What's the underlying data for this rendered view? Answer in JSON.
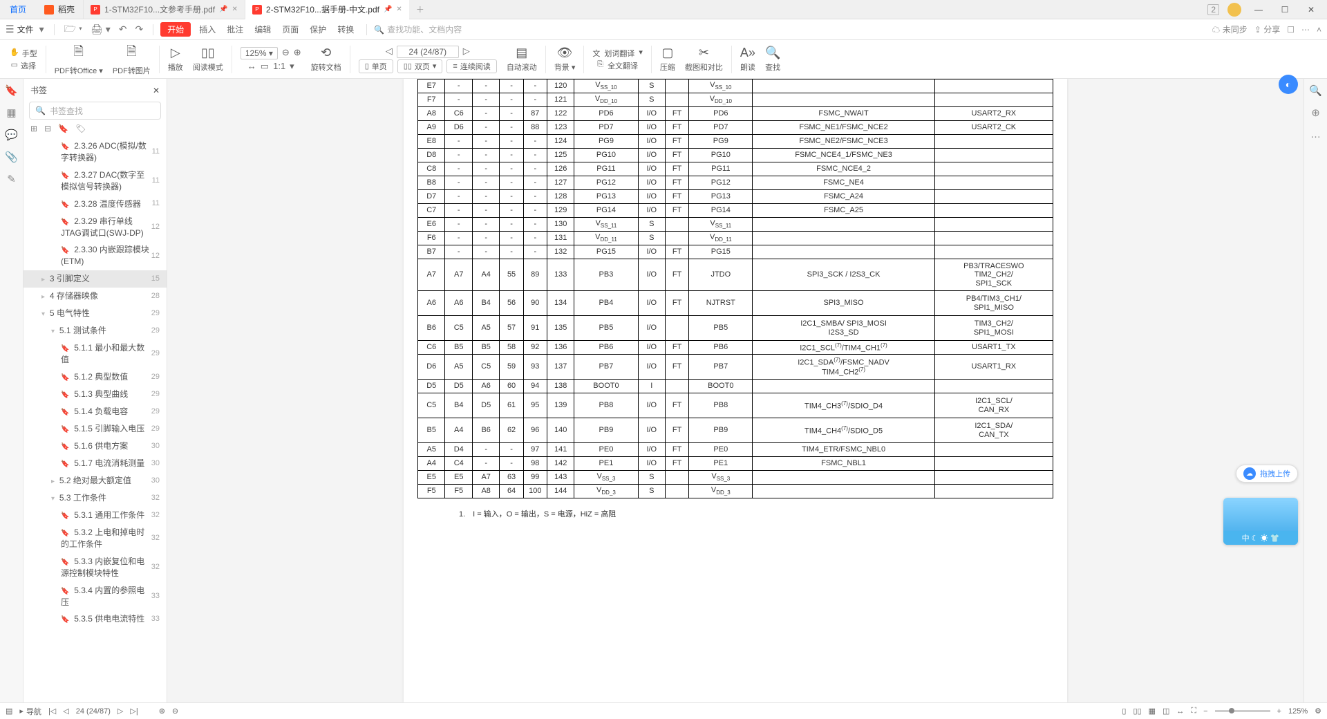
{
  "tabs": {
    "home": "首页",
    "shell": "稻壳",
    "doc1": "1-STM32F10...文参考手册.pdf",
    "doc2": "2-STM32F10...据手册-中文.pdf",
    "counter": "2"
  },
  "menu": {
    "file": "文件",
    "start": "开始",
    "items": [
      "插入",
      "批注",
      "编辑",
      "页面",
      "保护",
      "转换"
    ],
    "search_ph": "查找功能、文档内容",
    "sync": "未同步",
    "share": "分享"
  },
  "toolbar": {
    "hand": "手型",
    "select": "选择",
    "pdf_office": "PDF转Office",
    "pdf_img": "PDF转图片",
    "play": "播放",
    "read_mode": "阅读模式",
    "zoom": "125%",
    "rotate": "旋转文档",
    "page_nav": "24 (24/87)",
    "single": "单页",
    "double": "双页",
    "continuous": "连续阅读",
    "auto_scroll": "自动滚动",
    "bg": "背景",
    "wordtr": "划词翻译",
    "fulltr": "全文翻译",
    "compress": "压缩",
    "screenshot": "截图和对比",
    "readaloud": "朗读",
    "find": "查找"
  },
  "bm": {
    "title": "书签",
    "search_ph": "书签查找",
    "items": [
      {
        "d": 3,
        "lbl": "2.3.26 ADC(模拟/数字转换器)",
        "pg": "11"
      },
      {
        "d": 3,
        "lbl": "2.3.27 DAC(数字至模拟信号转换器)",
        "pg": "11"
      },
      {
        "d": 3,
        "lbl": "2.3.28 温度传感器",
        "pg": "11"
      },
      {
        "d": 3,
        "lbl": "2.3.29 串行单线JTAG调试口(SWJ-DP)",
        "pg": "12"
      },
      {
        "d": 3,
        "lbl": "2.3.30 内嵌跟踪模块(ETM)",
        "pg": "12"
      },
      {
        "d": 1,
        "lbl": "3 引脚定义",
        "pg": "15",
        "sel": true
      },
      {
        "d": 1,
        "lbl": "4 存储器映像",
        "pg": "28"
      },
      {
        "d": 1,
        "lbl": "5 电气特性",
        "pg": "29",
        "exp": true
      },
      {
        "d": 2,
        "lbl": "5.1 测试条件",
        "pg": "29",
        "exp": true
      },
      {
        "d": 3,
        "lbl": "5.1.1 最小和最大数值",
        "pg": "29"
      },
      {
        "d": 3,
        "lbl": "5.1.2 典型数值",
        "pg": "29"
      },
      {
        "d": 3,
        "lbl": "5.1.3 典型曲线",
        "pg": "29"
      },
      {
        "d": 3,
        "lbl": "5.1.4 负载电容",
        "pg": "29"
      },
      {
        "d": 3,
        "lbl": "5.1.5 引脚输入电压",
        "pg": "29"
      },
      {
        "d": 3,
        "lbl": "5.1.6 供电方案",
        "pg": "30"
      },
      {
        "d": 3,
        "lbl": "5.1.7 电流消耗测量",
        "pg": "30"
      },
      {
        "d": 2,
        "lbl": "5.2 绝对最大额定值",
        "pg": "30"
      },
      {
        "d": 2,
        "lbl": "5.3 工作条件",
        "pg": "32",
        "exp": true
      },
      {
        "d": 3,
        "lbl": "5.3.1 通用工作条件",
        "pg": "32"
      },
      {
        "d": 3,
        "lbl": "5.3.2 上电和掉电时的工作条件",
        "pg": "32"
      },
      {
        "d": 3,
        "lbl": "5.3.3 内嵌复位和电源控制模块特性",
        "pg": "32"
      },
      {
        "d": 3,
        "lbl": "5.3.4 内置的参照电压",
        "pg": "33"
      },
      {
        "d": 3,
        "lbl": "5.3.5 供电电流特性",
        "pg": "33"
      }
    ]
  },
  "tbl": {
    "rows": [
      {
        "c": [
          "E7",
          "-",
          "-",
          "-",
          "-",
          "120",
          "V<sub>SS_10</sub>",
          "S",
          "",
          "V<sub>SS_10</sub>",
          "",
          ""
        ]
      },
      {
        "c": [
          "F7",
          "-",
          "-",
          "-",
          "-",
          "121",
          "V<sub>DD_10</sub>",
          "S",
          "",
          "V<sub>DD_10</sub>",
          "",
          ""
        ]
      },
      {
        "c": [
          "A8",
          "C6",
          "-",
          "-",
          "87",
          "122",
          "PD6",
          "I/O",
          "FT",
          "PD6",
          "FSMC_NWAIT",
          "USART2_RX"
        ]
      },
      {
        "c": [
          "A9",
          "D6",
          "-",
          "-",
          "88",
          "123",
          "PD7",
          "I/O",
          "FT",
          "PD7",
          "FSMC_NE1/FSMC_NCE2",
          "USART2_CK"
        ]
      },
      {
        "c": [
          "E8",
          "-",
          "-",
          "-",
          "-",
          "124",
          "PG9",
          "I/O",
          "FT",
          "PG9",
          "FSMC_NE2/FSMC_NCE3",
          ""
        ]
      },
      {
        "c": [
          "D8",
          "-",
          "-",
          "-",
          "-",
          "125",
          "PG10",
          "I/O",
          "FT",
          "PG10",
          "FSMC_NCE4_1/FSMC_NE3",
          ""
        ]
      },
      {
        "c": [
          "C8",
          "-",
          "-",
          "-",
          "-",
          "126",
          "PG11",
          "I/O",
          "FT",
          "PG11",
          "FSMC_NCE4_2",
          ""
        ]
      },
      {
        "c": [
          "B8",
          "-",
          "-",
          "-",
          "-",
          "127",
          "PG12",
          "I/O",
          "FT",
          "PG12",
          "FSMC_NE4",
          ""
        ]
      },
      {
        "c": [
          "D7",
          "-",
          "-",
          "-",
          "-",
          "128",
          "PG13",
          "I/O",
          "FT",
          "PG13",
          "FSMC_A24",
          ""
        ]
      },
      {
        "c": [
          "C7",
          "-",
          "-",
          "-",
          "-",
          "129",
          "PG14",
          "I/O",
          "FT",
          "PG14",
          "FSMC_A25",
          ""
        ]
      },
      {
        "c": [
          "E6",
          "-",
          "-",
          "-",
          "-",
          "130",
          "V<sub>SS_11</sub>",
          "S",
          "",
          "V<sub>SS_11</sub>",
          "",
          ""
        ]
      },
      {
        "c": [
          "F6",
          "-",
          "-",
          "-",
          "-",
          "131",
          "V<sub>DD_11</sub>",
          "S",
          "",
          "V<sub>DD_11</sub>",
          "",
          ""
        ]
      },
      {
        "c": [
          "B7",
          "-",
          "-",
          "-",
          "-",
          "132",
          "PG15",
          "I/O",
          "FT",
          "PG15",
          "",
          ""
        ]
      },
      {
        "h": "tall",
        "c": [
          "A7",
          "A7",
          "A4",
          "55",
          "89",
          "133",
          "PB3",
          "I/O",
          "FT",
          "JTDO",
          "SPI3_SCK / I2S3_CK",
          "PB3/TRACESWO<br>TIM2_CH2/<br>SPI1_SCK"
        ]
      },
      {
        "h": "med",
        "c": [
          "A6",
          "A6",
          "B4",
          "56",
          "90",
          "134",
          "PB4",
          "I/O",
          "FT",
          "NJTRST",
          "SPI3_MISO",
          "PB4/TIM3_CH1/<br>SPI1_MISO"
        ]
      },
      {
        "h": "med",
        "c": [
          "B6",
          "C5",
          "A5",
          "57",
          "91",
          "135",
          "PB5",
          "I/O",
          "",
          "PB5",
          "I2C1_SMBA/ SPI3_MOSI<br>I2S3_SD",
          "TIM3_CH2/<br>SPI1_MOSI"
        ]
      },
      {
        "c": [
          "C6",
          "B5",
          "B5",
          "58",
          "92",
          "136",
          "PB6",
          "I/O",
          "FT",
          "PB6",
          "I2C1_SCL<sup>(7)</sup>/TIM4_CH1<sup>(7)</sup>",
          "USART1_TX"
        ]
      },
      {
        "h": "med",
        "c": [
          "D6",
          "A5",
          "C5",
          "59",
          "93",
          "137",
          "PB7",
          "I/O",
          "FT",
          "PB7",
          "I2C1_SDA<sup>(7)</sup>/FSMC_NADV<br>TIM4_CH2<sup>(7)</sup>",
          "USART1_RX"
        ]
      },
      {
        "c": [
          "D5",
          "D5",
          "A6",
          "60",
          "94",
          "138",
          "BOOT0",
          "I",
          "",
          "BOOT0",
          "",
          ""
        ]
      },
      {
        "h": "med",
        "c": [
          "C5",
          "B4",
          "D5",
          "61",
          "95",
          "139",
          "PB8",
          "I/O",
          "FT",
          "PB8",
          "TIM4_CH3<sup>(7)</sup>/SDIO_D4",
          "I2C1_SCL/<br>CAN_RX"
        ]
      },
      {
        "h": "med",
        "c": [
          "B5",
          "A4",
          "B6",
          "62",
          "96",
          "140",
          "PB9",
          "I/O",
          "FT",
          "PB9",
          "TIM4_CH4<sup>(7)</sup>/SDIO_D5",
          "I2C1_SDA/<br>CAN_TX"
        ]
      },
      {
        "c": [
          "A5",
          "D4",
          "-",
          "-",
          "97",
          "141",
          "PE0",
          "I/O",
          "FT",
          "PE0",
          "TIM4_ETR/FSMC_NBL0",
          ""
        ]
      },
      {
        "c": [
          "A4",
          "C4",
          "-",
          "-",
          "98",
          "142",
          "PE1",
          "I/O",
          "FT",
          "PE1",
          "FSMC_NBL1",
          ""
        ]
      },
      {
        "c": [
          "E5",
          "E5",
          "A7",
          "63",
          "99",
          "143",
          "V<sub>SS_3</sub>",
          "S",
          "",
          "V<sub>SS_3</sub>",
          "",
          ""
        ]
      },
      {
        "c": [
          "F5",
          "F5",
          "A8",
          "64",
          "100",
          "144",
          "V<sub>DD_3</sub>",
          "S",
          "",
          "V<sub>DD_3</sub>",
          "",
          ""
        ]
      }
    ]
  },
  "footnote": "1.　I = 输入，O = 输出，S = 电源，HiZ = 高阻",
  "upload": "拖拽上传",
  "weather_line": "中 ☾ ☀ 👕",
  "status": {
    "nav": "导航",
    "page": "24 (24/87)",
    "zoom": "125%"
  }
}
